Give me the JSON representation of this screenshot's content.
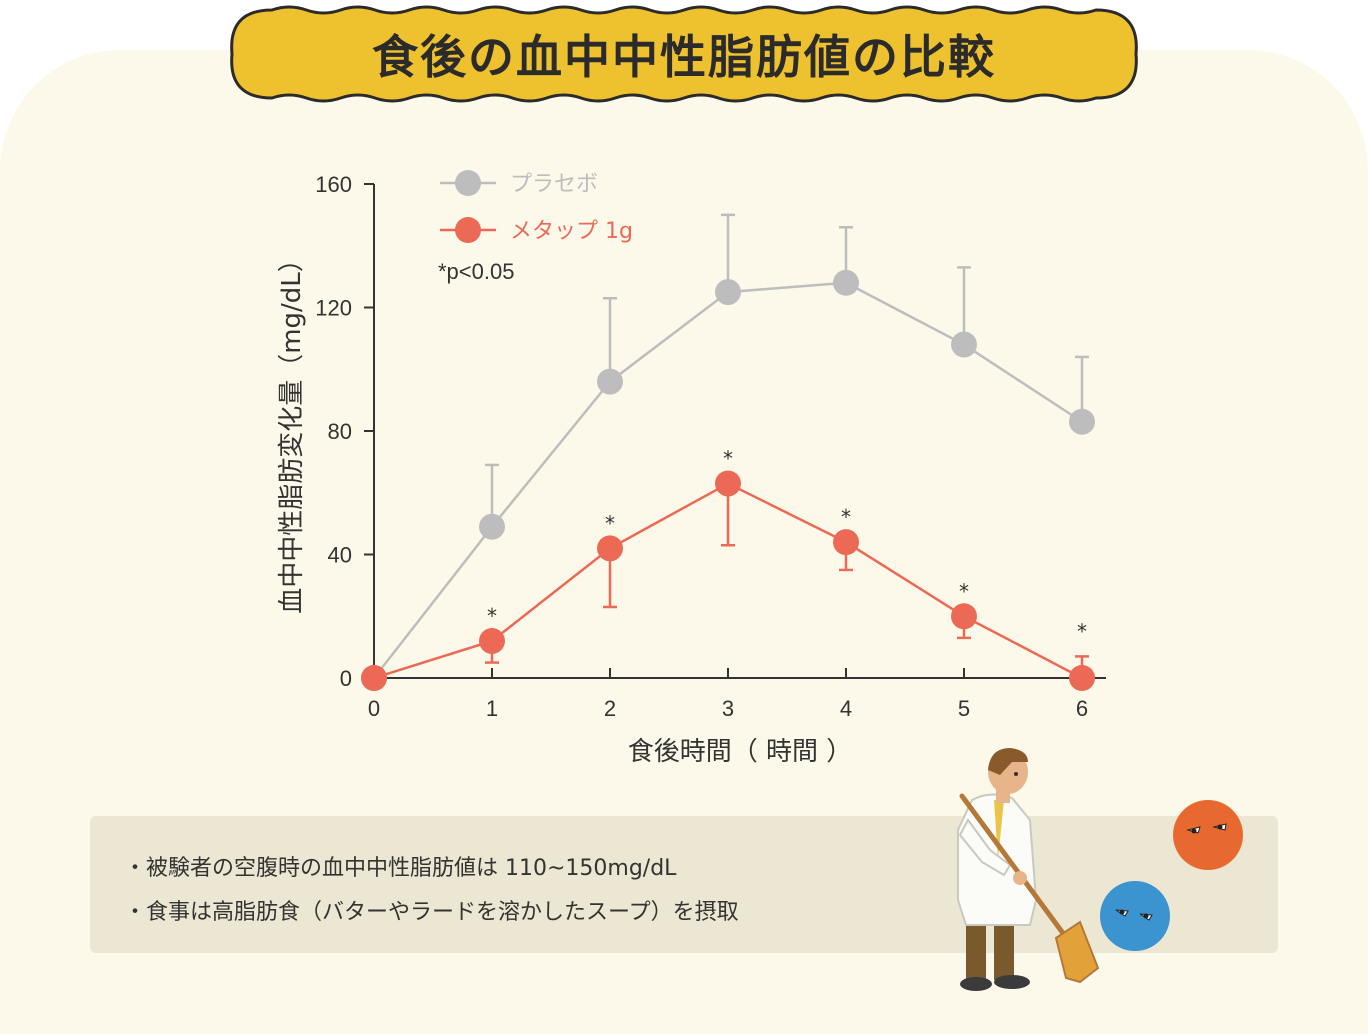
{
  "title": "食後の血中中性脂肪値の比較",
  "notes": [
    "・被験者の空腹時の血中中性脂肪値は 110~150mg/dL",
    "・食事は高脂肪食（バターやラードを溶かしたスープ）を摂取"
  ],
  "chart_data": {
    "type": "line",
    "title": "食後の血中中性脂肪値の比較",
    "xlabel": "食後時間（ 時間 ）",
    "ylabel": "血中中性脂肪変化量（mg/dL）",
    "x": [
      0,
      1,
      2,
      3,
      4,
      5,
      6
    ],
    "xticks": [
      "0",
      "1",
      "2",
      "3",
      "4",
      "5",
      "6"
    ],
    "yticks": [
      "0",
      "40",
      "80",
      "120",
      "160"
    ],
    "ylim": [
      0,
      160
    ],
    "legend_position": "top-left",
    "annotation": "*p<0.05",
    "significance_marker": "*",
    "series": [
      {
        "name": "プラセボ",
        "color": "#bdbdbd",
        "values": [
          0,
          49,
          96,
          125,
          128,
          108,
          83
        ],
        "error_upper": [
          0,
          69,
          123,
          150,
          146,
          133,
          104
        ],
        "significant": [
          false,
          false,
          false,
          false,
          false,
          false,
          false
        ]
      },
      {
        "name": "メタップ 1g",
        "color": "#ec6a55",
        "values": [
          0,
          12,
          42,
          63,
          44,
          20,
          0
        ],
        "error_lower": [
          0,
          5,
          23,
          43,
          35,
          13,
          0
        ],
        "error_upper": [
          0,
          12,
          42,
          63,
          44,
          20,
          7
        ],
        "significant": [
          false,
          true,
          true,
          true,
          true,
          true,
          true
        ]
      }
    ]
  }
}
